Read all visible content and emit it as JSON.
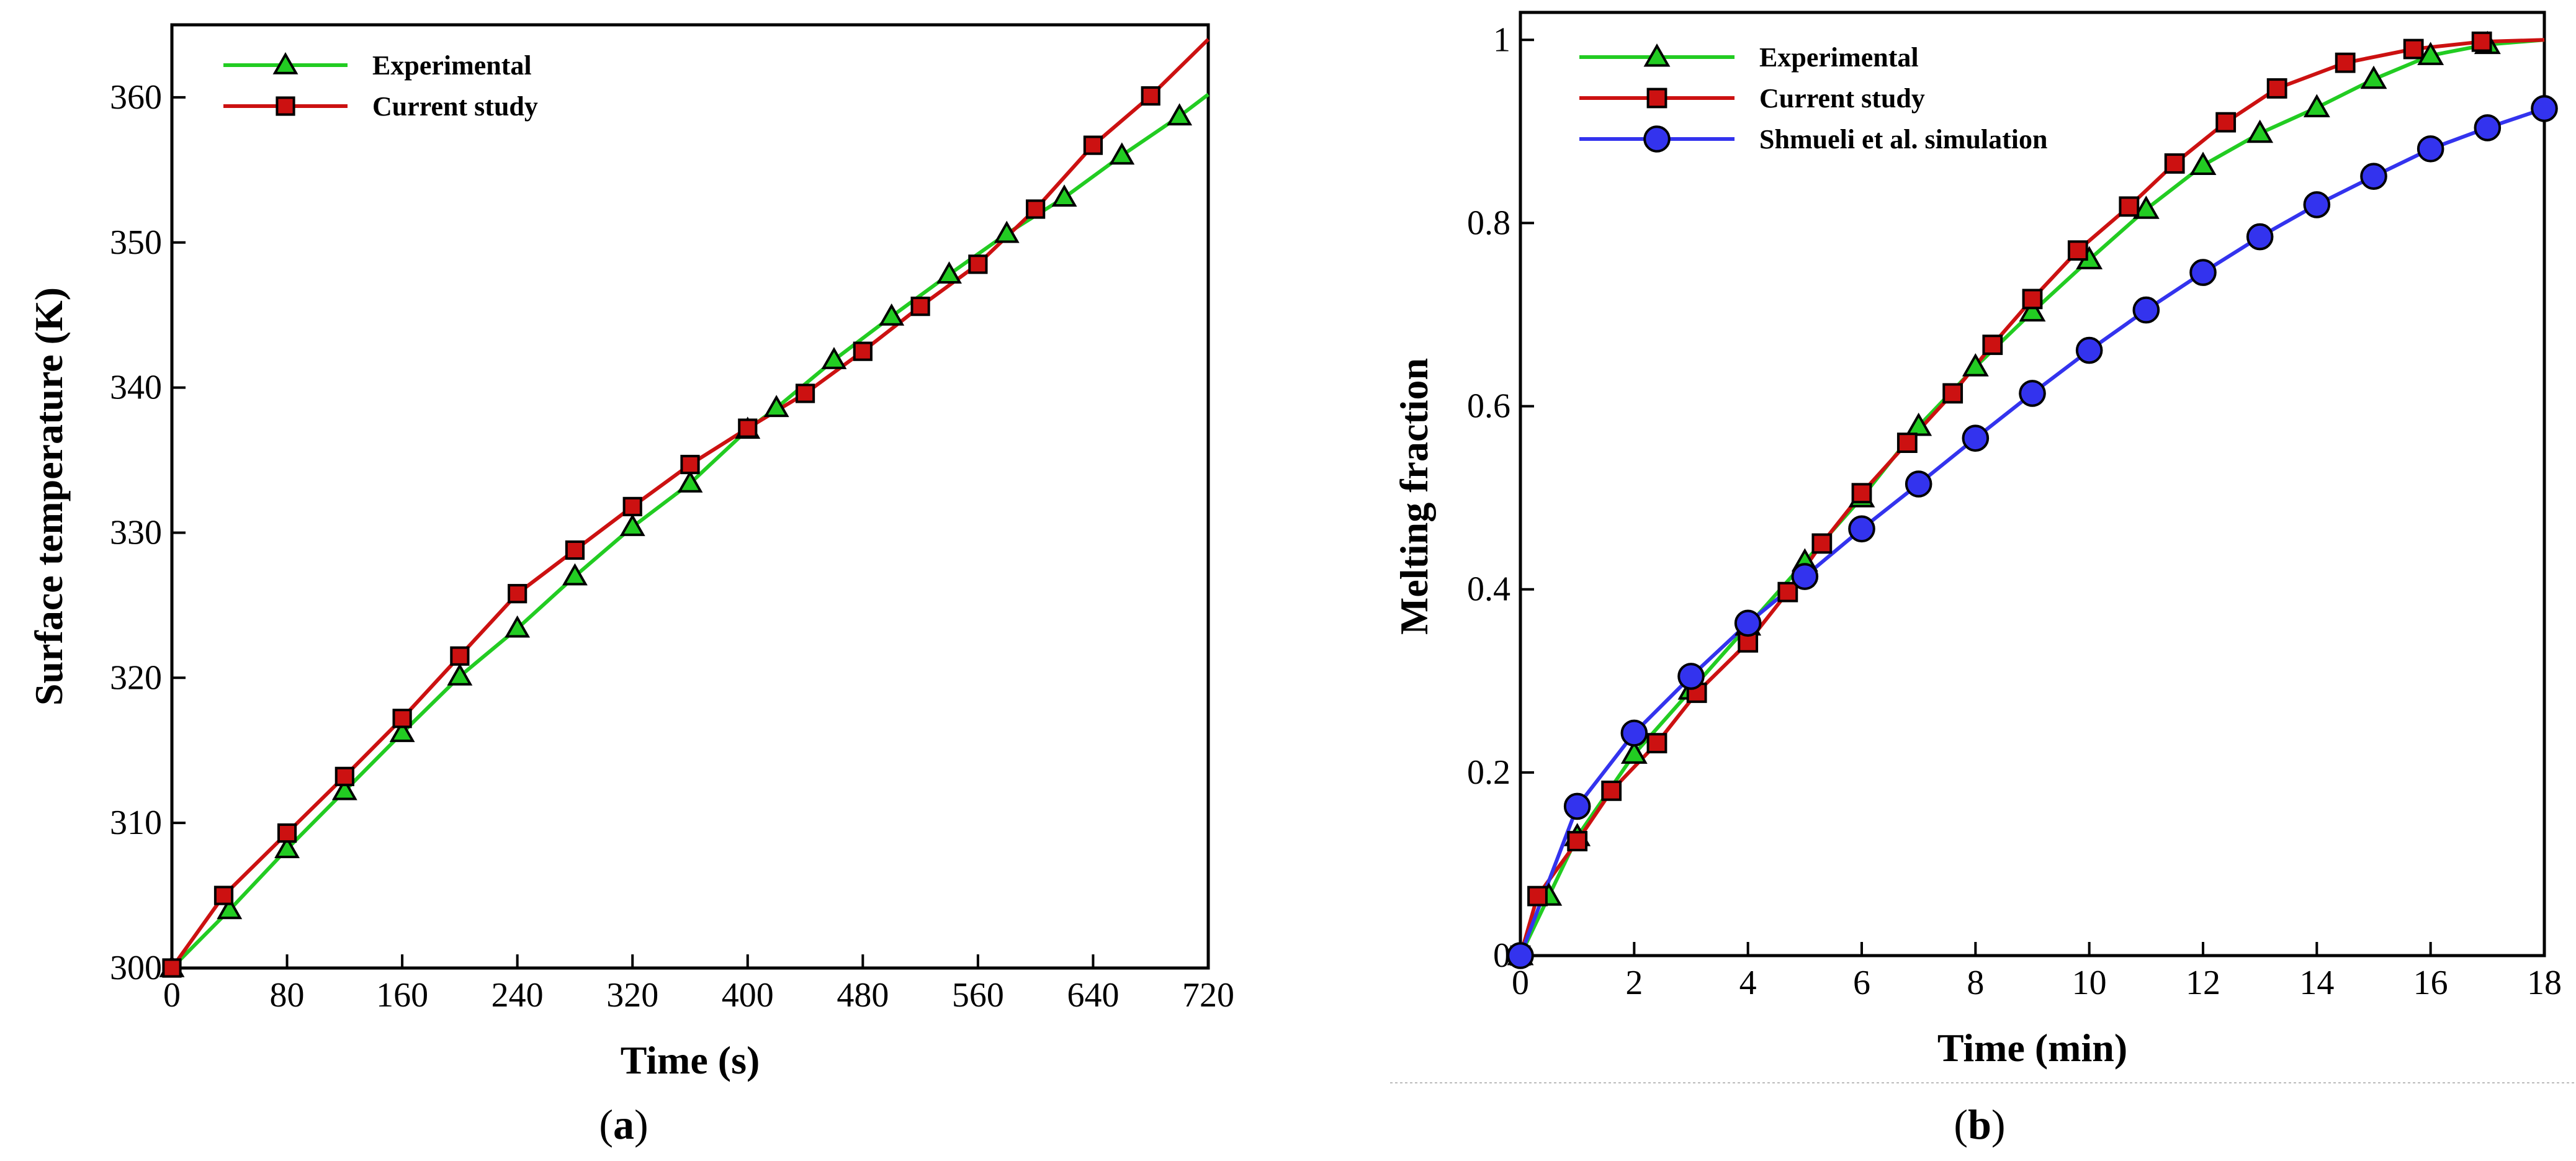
{
  "chart_data": [
    {
      "type": "line",
      "panel_label": "a",
      "xlabel": "Time (s)",
      "ylabel": "Surface temperature (K)",
      "xlim": [
        0,
        720
      ],
      "ylim": [
        300,
        365
      ],
      "xticks": [
        0,
        80,
        160,
        240,
        320,
        400,
        480,
        560,
        640,
        720
      ],
      "yticks": [
        300,
        310,
        320,
        330,
        340,
        350,
        360
      ],
      "grid": false,
      "legend_position": "top-left",
      "series": [
        {
          "name": "Experimental",
          "color": "#22cc22",
          "marker": "triangle",
          "x": [
            0,
            40,
            80,
            120,
            160,
            200,
            240,
            280,
            320,
            360,
            400,
            420,
            460,
            500,
            540,
            580,
            620,
            660,
            700
          ],
          "y": [
            300,
            304,
            308.2,
            312.2,
            316.2,
            320.1,
            323.4,
            327.0,
            330.4,
            333.4,
            337.1,
            338.6,
            341.9,
            344.9,
            347.8,
            350.6,
            353.1,
            356.0,
            358.7
          ],
          "line_end": [
            720,
            360.2
          ]
        },
        {
          "name": "Current study",
          "color": "#cc1111",
          "marker": "square",
          "x": [
            0,
            36,
            80,
            120,
            160,
            200,
            240,
            280,
            320,
            360,
            400,
            440,
            480,
            520,
            560,
            600,
            640,
            680
          ],
          "y": [
            300,
            305,
            309.3,
            313.2,
            317.2,
            321.5,
            325.8,
            328.8,
            331.8,
            334.7,
            337.2,
            339.6,
            342.5,
            345.6,
            348.5,
            352.3,
            356.7,
            360.1
          ],
          "line_end": [
            720,
            364
          ]
        }
      ]
    },
    {
      "type": "line",
      "panel_label": "b",
      "xlabel": "Time (min)",
      "ylabel": "Melting fraction",
      "xlim": [
        0,
        18
      ],
      "ylim": [
        0,
        1.03
      ],
      "xticks": [
        0,
        2,
        4,
        6,
        8,
        10,
        12,
        14,
        16,
        18
      ],
      "yticks": [
        0,
        0.2,
        0.4,
        0.6,
        0.8,
        1
      ],
      "grid": false,
      "legend_position": "top-left",
      "series": [
        {
          "name": "Experimental",
          "color": "#22cc22",
          "marker": "triangle",
          "x": [
            0,
            0.5,
            1,
            2,
            3,
            4,
            5,
            6,
            7,
            8,
            9,
            10,
            11,
            12,
            13,
            14,
            15,
            16,
            17
          ],
          "y": [
            0,
            0.065,
            0.13,
            0.22,
            0.29,
            0.36,
            0.43,
            0.5,
            0.578,
            0.643,
            0.703,
            0.76,
            0.815,
            0.863,
            0.898,
            0.926,
            0.957,
            0.983,
            0.995
          ],
          "line_end": [
            18,
            1.0
          ]
        },
        {
          "name": "Current study",
          "color": "#cc1111",
          "marker": "square",
          "x": [
            0,
            0.3,
            1,
            1.6,
            2.4,
            3.1,
            4.0,
            4.7,
            5.3,
            6.0,
            6.8,
            7.6,
            8.3,
            9.0,
            9.8,
            10.7,
            11.5,
            12.4,
            13.3,
            14.5,
            15.7,
            16.9
          ],
          "y": [
            0,
            0.065,
            0.125,
            0.18,
            0.232,
            0.287,
            0.342,
            0.397,
            0.45,
            0.505,
            0.56,
            0.614,
            0.667,
            0.717,
            0.77,
            0.818,
            0.865,
            0.91,
            0.947,
            0.975,
            0.99,
            0.998
          ],
          "line_end": [
            18,
            1.0
          ]
        },
        {
          "name": "Shmueli et al. simulation",
          "color": "#3333ee",
          "marker": "circle",
          "x": [
            0,
            1,
            2,
            3,
            4,
            5,
            6,
            7,
            8,
            9,
            10,
            11,
            12,
            13,
            14,
            15,
            16,
            17,
            18
          ],
          "y": [
            0,
            0.163,
            0.243,
            0.305,
            0.363,
            0.414,
            0.466,
            0.515,
            0.565,
            0.614,
            0.661,
            0.705,
            0.746,
            0.785,
            0.82,
            0.851,
            0.881,
            0.904,
            0.925
          ]
        }
      ]
    }
  ]
}
